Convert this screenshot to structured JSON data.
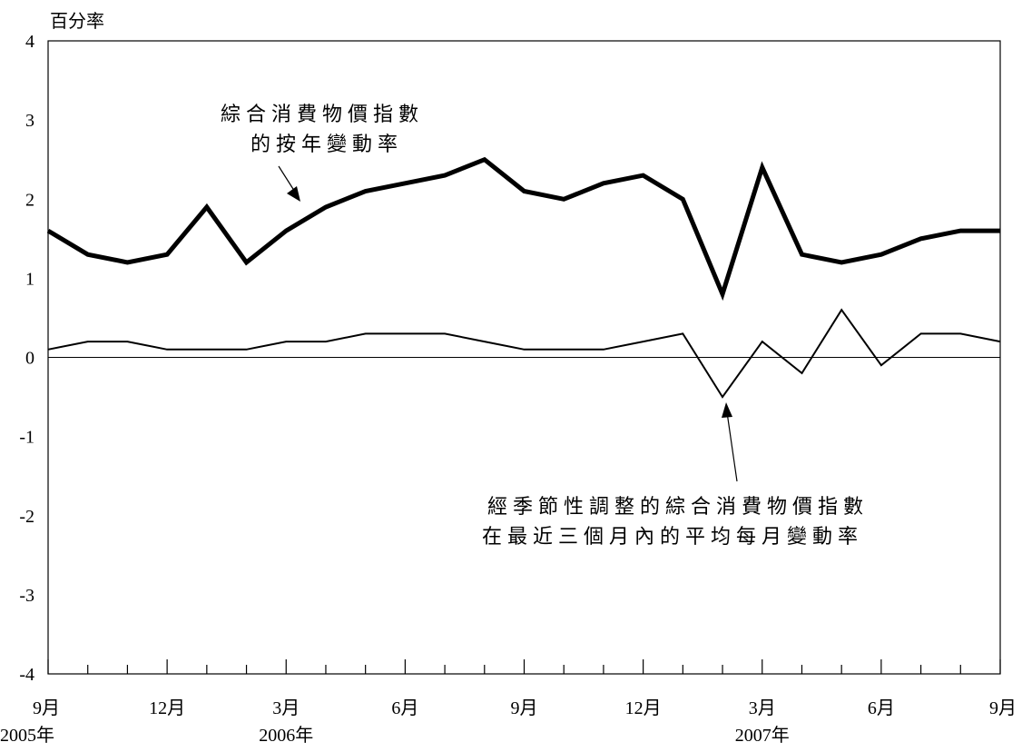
{
  "chart_data": {
    "type": "line",
    "ylabel": "百分率",
    "ylim": [
      -4,
      4
    ],
    "yticks": [
      "4",
      "3",
      "2",
      "1",
      "0",
      "-1",
      "-2",
      "-3",
      "-4"
    ],
    "x_tick_labels": [
      {
        "month": "9月",
        "year": "2005年"
      },
      {
        "month": "12月",
        "year": ""
      },
      {
        "month": "3月",
        "year": "2006年"
      },
      {
        "month": "6月",
        "year": ""
      },
      {
        "month": "9月",
        "year": ""
      },
      {
        "month": "12月",
        "year": ""
      },
      {
        "month": "3月",
        "year": "2007年"
      },
      {
        "month": "6月",
        "year": ""
      },
      {
        "month": "9月",
        "year": ""
      }
    ],
    "x": [
      "2005-09",
      "2005-10",
      "2005-11",
      "2005-12",
      "2006-01",
      "2006-02",
      "2006-03",
      "2006-04",
      "2006-05",
      "2006-06",
      "2006-07",
      "2006-08",
      "2006-09",
      "2006-10",
      "2006-11",
      "2006-12",
      "2007-01",
      "2007-02",
      "2007-03",
      "2007-04",
      "2007-05",
      "2007-06",
      "2007-07",
      "2007-08",
      "2007-09"
    ],
    "series": [
      {
        "values": [
          1.6,
          1.3,
          1.2,
          1.3,
          1.9,
          1.2,
          1.6,
          1.9,
          2.1,
          2.2,
          2.3,
          2.5,
          2.1,
          2.0,
          2.2,
          2.3,
          2.0,
          0.8,
          2.4,
          1.3,
          1.2,
          1.3,
          1.5,
          1.6,
          1.6
        ],
        "style": "thick"
      },
      {
        "values": [
          0.1,
          0.2,
          0.2,
          0.1,
          0.1,
          0.1,
          0.2,
          0.2,
          0.3,
          0.3,
          0.3,
          0.2,
          0.1,
          0.1,
          0.1,
          0.2,
          0.3,
          -0.5,
          0.2,
          -0.2,
          0.6,
          -0.1,
          0.3,
          0.3,
          0.2
        ],
        "style": "thin"
      }
    ],
    "annotations": [
      {
        "lines": [
          "綜合消費物價指數",
          "的按年變動率"
        ]
      },
      {
        "lines": [
          "經季節性調整的綜合消費物價指數",
          "在最近三個月內的平均每月變動率"
        ]
      }
    ],
    "grid": false,
    "colors": {
      "line": "#000000",
      "background": "#ffffff"
    }
  }
}
